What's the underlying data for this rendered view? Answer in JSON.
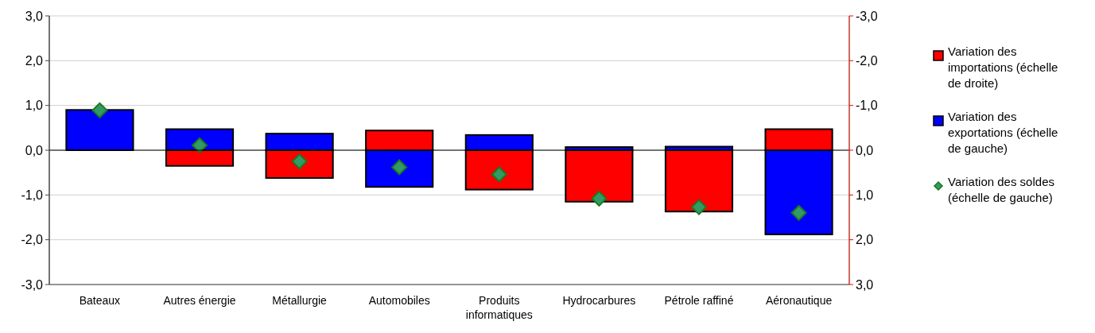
{
  "chart_data": {
    "type": "bar",
    "categories": [
      "Bateaux",
      "Autres énergie",
      "Métallurgie",
      "Automobiles",
      "Produits informatiques",
      "Hydrocarbures",
      "Pétrole raffiné",
      "Aéronautique"
    ],
    "series": [
      {
        "name": "Variation des importations (échelle de droite)",
        "color": "#ff0000",
        "axis": "y2",
        "values": [
          null,
          0.35,
          0.62,
          -0.44,
          0.88,
          1.15,
          1.37,
          -0.47
        ]
      },
      {
        "name": "Variation des exportations (échelle de gauche)",
        "color": "#0000ff",
        "values": [
          0.9,
          0.47,
          0.37,
          -0.82,
          0.34,
          0.07,
          0.08,
          -1.88
        ]
      },
      {
        "name": "Variation des soldes (échelle de gauche)",
        "color": "#339966",
        "type": "scatter",
        "marker": "diamond",
        "values": [
          0.89,
          0.11,
          -0.25,
          -0.38,
          -0.54,
          -1.08,
          -1.27,
          -1.4
        ]
      }
    ],
    "ylim": [
      -3,
      3
    ],
    "yticks": [
      {
        "value": -3,
        "label": "-3,0"
      },
      {
        "value": -2,
        "label": "-2,0"
      },
      {
        "value": -1,
        "label": "-1,0"
      },
      {
        "value": 0,
        "label": "0,0"
      },
      {
        "value": 1,
        "label": "1,0"
      },
      {
        "value": 2,
        "label": "2,0"
      },
      {
        "value": 3,
        "label": "3,0"
      }
    ],
    "y2lim": [
      3,
      -3
    ],
    "y2ticks": [
      {
        "value": 3,
        "label": "3,0"
      },
      {
        "value": 2,
        "label": "2,0"
      },
      {
        "value": 1,
        "label": "1,0"
      },
      {
        "value": 0,
        "label": "0,0"
      },
      {
        "value": -1,
        "label": "-1,0"
      },
      {
        "value": -2,
        "label": "-2,0"
      },
      {
        "value": -3,
        "label": "-3,0"
      }
    ],
    "grid": "y",
    "legend": "right",
    "stacked": true
  }
}
